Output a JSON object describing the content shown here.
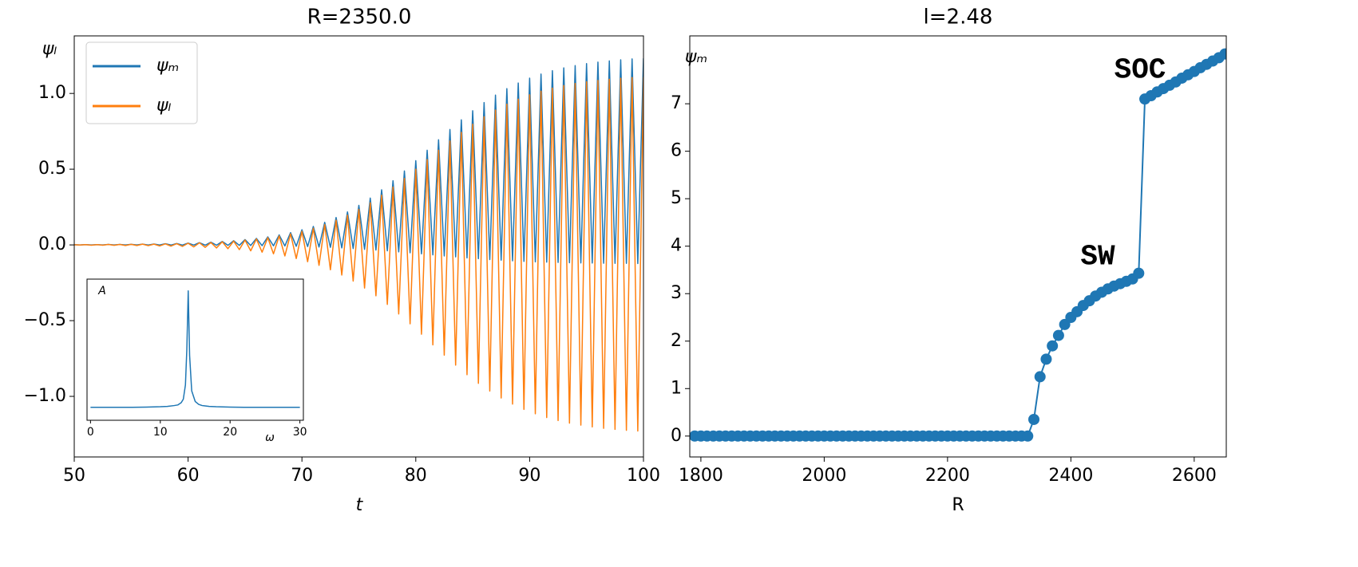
{
  "chart_data": [
    {
      "type": "line",
      "title": "R=2350.0",
      "x_label": "t",
      "y_label": "ψₗ",
      "x": [
        50,
        50.5,
        51,
        51.5,
        52,
        52.5,
        53,
        53.5,
        54,
        54.5,
        55,
        55.5,
        56,
        56.5,
        57,
        57.5,
        58,
        58.5,
        59,
        59.5,
        60,
        60.5,
        61,
        61.5,
        62,
        62.5,
        63,
        63.5,
        64,
        64.5,
        65,
        65.5,
        66,
        66.5,
        67,
        67.5,
        68,
        68.5,
        69,
        69.5,
        70,
        70.5,
        71,
        71.5,
        72,
        72.5,
        73,
        73.5,
        74,
        74.5,
        75,
        75.5,
        76,
        76.5,
        77,
        77.5,
        78,
        78.5,
        79,
        79.5,
        80,
        80.5,
        81,
        81.5,
        82,
        82.5,
        83,
        83.5,
        84,
        84.5,
        85,
        85.5,
        86,
        86.5,
        87,
        87.5,
        88,
        88.5,
        89,
        89.5,
        90,
        90.5,
        91,
        91.5,
        92,
        92.5,
        93,
        93.5,
        94,
        94.5,
        95,
        95.5,
        96,
        96.5,
        97,
        97.5,
        98,
        98.5,
        99,
        99.5,
        100
      ],
      "series": [
        {
          "name": "ψₘ",
          "color": "#1f77b4",
          "values": [
            0.001,
            0,
            0.002,
            0,
            0.002,
            0,
            0.003,
            0,
            0.003,
            0,
            0.004,
            0,
            0.005,
            -0.001,
            0.006,
            -0.001,
            0.008,
            -0.001,
            0.009,
            -0.001,
            0.012,
            -0.001,
            0.015,
            -0.002,
            0.018,
            -0.002,
            0.023,
            -0.003,
            0.028,
            -0.003,
            0.035,
            -0.004,
            0.043,
            -0.005,
            0.053,
            -0.006,
            0.066,
            -0.007,
            0.081,
            -0.009,
            0.1,
            -0.011,
            0.122,
            -0.014,
            0.149,
            -0.016,
            0.181,
            -0.02,
            0.218,
            -0.024,
            0.261,
            -0.029,
            0.309,
            -0.034,
            0.364,
            -0.039,
            0.424,
            -0.046,
            0.488,
            -0.052,
            0.556,
            -0.059,
            0.625,
            -0.066,
            0.694,
            -0.073,
            0.762,
            -0.079,
            0.826,
            -0.086,
            0.886,
            -0.091,
            0.94,
            -0.097,
            0.989,
            -0.101,
            1.032,
            -0.105,
            1.069,
            -0.109,
            1.101,
            -0.112,
            1.128,
            -0.114,
            1.15,
            -0.116,
            1.169,
            -0.118,
            1.184,
            -0.119,
            1.197,
            -0.12,
            1.207,
            -0.121,
            1.215,
            -0.122,
            1.222,
            -0.122,
            1.228,
            -0.123,
            1.232
          ]
        },
        {
          "name": "ψₗ",
          "color": "#ff7f0e",
          "values": [
            0.001,
            -0.001,
            0.002,
            -0.002,
            0.002,
            -0.002,
            0.003,
            -0.003,
            0.003,
            -0.004,
            0.004,
            -0.004,
            0.005,
            -0.005,
            0.005,
            -0.007,
            0.007,
            -0.008,
            0.008,
            -0.01,
            0.011,
            -0.013,
            0.014,
            -0.016,
            0.016,
            -0.02,
            0.021,
            -0.025,
            0.025,
            -0.031,
            0.032,
            -0.039,
            0.039,
            -0.048,
            0.048,
            -0.059,
            0.059,
            -0.073,
            0.073,
            -0.09,
            0.09,
            -0.111,
            0.11,
            -0.135,
            0.134,
            -0.164,
            0.163,
            -0.199,
            0.196,
            -0.239,
            0.235,
            -0.285,
            0.278,
            -0.336,
            0.328,
            -0.393,
            0.382,
            -0.456,
            0.439,
            -0.521,
            0.5,
            -0.59,
            0.563,
            -0.66,
            0.625,
            -0.728,
            0.686,
            -0.794,
            0.743,
            -0.857,
            0.797,
            -0.914,
            0.846,
            -0.965,
            0.89,
            -1.011,
            0.929,
            -1.051,
            0.962,
            -1.086,
            0.991,
            -1.115,
            1.015,
            -1.14,
            1.035,
            -1.16,
            1.052,
            -1.177,
            1.066,
            -1.19,
            1.077,
            -1.202,
            1.086,
            -1.211,
            1.094,
            -1.218,
            1.1,
            -1.224,
            1.105,
            -1.229,
            1.109
          ]
        }
      ],
      "xlim": [
        50,
        100
      ],
      "ylim": [
        -1.4,
        1.38
      ],
      "xticks": [
        50,
        60,
        70,
        80,
        90,
        100
      ],
      "yticks": [
        {
          "value": -1,
          "label": "−1.0"
        },
        {
          "value": -0.5,
          "label": "−0.5"
        },
        {
          "value": 0,
          "label": "0.0"
        },
        {
          "value": 0.5,
          "label": "0.5"
        },
        {
          "value": 1,
          "label": "1.0"
        }
      ],
      "legend": "upper left"
    },
    {
      "type": "line",
      "marker": true,
      "title": "l=2.48",
      "x_label": "R",
      "y_label": "ψₘ",
      "x": [
        1790,
        1800,
        1810,
        1820,
        1830,
        1840,
        1850,
        1860,
        1870,
        1880,
        1890,
        1900,
        1910,
        1920,
        1930,
        1940,
        1950,
        1960,
        1970,
        1980,
        1990,
        2000,
        2010,
        2020,
        2030,
        2040,
        2050,
        2060,
        2070,
        2080,
        2090,
        2100,
        2110,
        2120,
        2130,
        2140,
        2150,
        2160,
        2170,
        2180,
        2190,
        2200,
        2210,
        2220,
        2230,
        2240,
        2250,
        2260,
        2270,
        2280,
        2290,
        2300,
        2310,
        2320,
        2330,
        2340,
        2350,
        2360,
        2370,
        2380,
        2390,
        2400,
        2410,
        2420,
        2430,
        2440,
        2450,
        2460,
        2470,
        2480,
        2490,
        2500,
        2510,
        2520,
        2530,
        2540,
        2550,
        2560,
        2570,
        2580,
        2590,
        2600,
        2610,
        2620,
        2630,
        2640,
        2650
      ],
      "series": [
        {
          "color": "#1f77b4",
          "values": [
            0,
            0,
            0,
            0,
            0,
            0,
            0,
            0,
            0,
            0,
            0,
            0,
            0,
            0,
            0,
            0,
            0,
            0,
            0,
            0,
            0,
            0,
            0,
            0,
            0,
            0,
            0,
            0,
            0,
            0,
            0,
            0,
            0,
            0,
            0,
            0,
            0,
            0,
            0,
            0,
            0,
            0,
            0,
            0,
            0,
            0,
            0,
            0,
            0,
            0,
            0,
            0,
            0,
            0,
            0,
            0.35,
            1.25,
            1.62,
            1.9,
            2.12,
            2.35,
            2.5,
            2.62,
            2.75,
            2.85,
            2.95,
            3.03,
            3.1,
            3.16,
            3.21,
            3.26,
            3.31,
            3.43,
            7.1,
            7.17,
            7.25,
            7.32,
            7.39,
            7.46,
            7.54,
            7.61,
            7.68,
            7.76,
            7.83,
            7.9,
            7.97,
            8.05
          ]
        }
      ],
      "xlim": [
        1782,
        2652
      ],
      "ylim": [
        -0.44,
        8.43
      ],
      "xticks": [
        1800,
        2000,
        2200,
        2400,
        2600
      ],
      "yticks": [
        0,
        1,
        2,
        3,
        4,
        5,
        6,
        7
      ],
      "annotations": [
        "SW",
        "SOC"
      ]
    },
    {
      "type": "line",
      "x_label": "ω",
      "y_label": "A",
      "x": [
        0,
        2,
        4,
        6,
        8,
        10,
        11,
        12,
        12.5,
        13,
        13.3,
        13.6,
        13.8,
        14,
        14.2,
        14.5,
        15,
        15.5,
        16,
        17,
        18,
        20,
        22,
        24,
        26,
        28,
        30
      ],
      "series": [
        {
          "color": "#1f77b4",
          "values": [
            0.01,
            0.01,
            0.01,
            0.01,
            0.012,
            0.015,
            0.018,
            0.025,
            0.03,
            0.05,
            0.08,
            0.2,
            0.5,
            1.0,
            0.45,
            0.15,
            0.06,
            0.035,
            0.025,
            0.018,
            0.015,
            0.012,
            0.01,
            0.01,
            0.01,
            0.01,
            0.01
          ]
        }
      ],
      "xlim": [
        -0.5,
        30.5
      ],
      "ylim": [
        -0.1,
        1.1
      ],
      "xticks": [
        0,
        10,
        20,
        30
      ]
    }
  ]
}
